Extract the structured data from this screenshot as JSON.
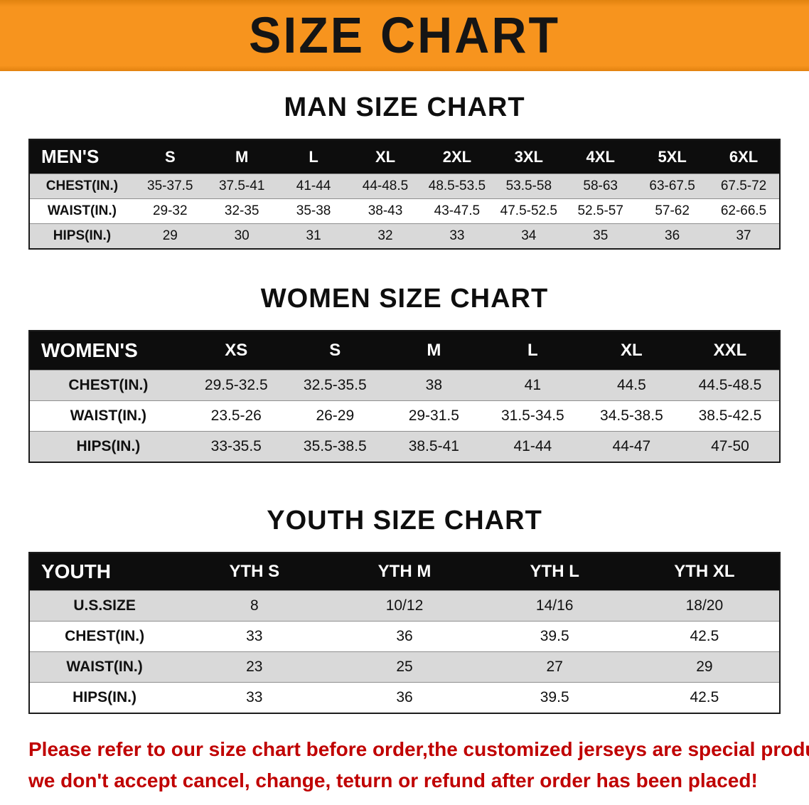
{
  "banner": {
    "title": "SIZE CHART"
  },
  "colors": {
    "banner_bg": "#F7941E",
    "header_bg": "#0d0d0d",
    "row_alt_bg": "#d9d9d9",
    "note_color": "#C00000"
  },
  "men": {
    "heading": "MAN SIZE CHART",
    "table": {
      "header": [
        "MEN'S",
        "S",
        "M",
        "L",
        "XL",
        "2XL",
        "3XL",
        "4XL",
        "5XL",
        "6XL"
      ],
      "rows": [
        [
          "CHEST(IN.)",
          "35-37.5",
          "37.5-41",
          "41-44",
          "44-48.5",
          "48.5-53.5",
          "53.5-58",
          "58-63",
          "63-67.5",
          "67.5-72"
        ],
        [
          "WAIST(IN.)",
          "29-32",
          "32-35",
          "35-38",
          "38-43",
          "43-47.5",
          "47.5-52.5",
          "52.5-57",
          "57-62",
          "62-66.5"
        ],
        [
          "HIPS(IN.)",
          "29",
          "30",
          "31",
          "32",
          "33",
          "34",
          "35",
          "36",
          "37"
        ]
      ]
    }
  },
  "women": {
    "heading": "WOMEN SIZE CHART",
    "table": {
      "header": [
        "WOMEN'S",
        "XS",
        "S",
        "M",
        "L",
        "XL",
        "XXL"
      ],
      "rows": [
        [
          "CHEST(IN.)",
          "29.5-32.5",
          "32.5-35.5",
          "38",
          "41",
          "44.5",
          "44.5-48.5"
        ],
        [
          "WAIST(IN.)",
          "23.5-26",
          "26-29",
          "29-31.5",
          "31.5-34.5",
          "34.5-38.5",
          "38.5-42.5"
        ],
        [
          "HIPS(IN.)",
          "33-35.5",
          "35.5-38.5",
          "38.5-41",
          "41-44",
          "44-47",
          "47-50"
        ]
      ]
    }
  },
  "youth": {
    "heading": "YOUTH SIZE CHART",
    "table": {
      "header": [
        "YOUTH",
        "YTH S",
        "YTH M",
        "YTH L",
        "YTH XL"
      ],
      "rows": [
        [
          "U.S.SIZE",
          "8",
          "10/12",
          "14/16",
          "18/20"
        ],
        [
          "CHEST(IN.)",
          "33",
          "36",
          "39.5",
          "42.5"
        ],
        [
          "WAIST(IN.)",
          "23",
          "25",
          "27",
          "29"
        ],
        [
          "HIPS(IN.)",
          "33",
          "36",
          "39.5",
          "42.5"
        ]
      ]
    }
  },
  "note": {
    "line1": "Please refer to our size chart before order,the customized jerseys are special products,",
    "line2": "we don't accept cancel, change, teturn or refund after order has been placed!"
  }
}
